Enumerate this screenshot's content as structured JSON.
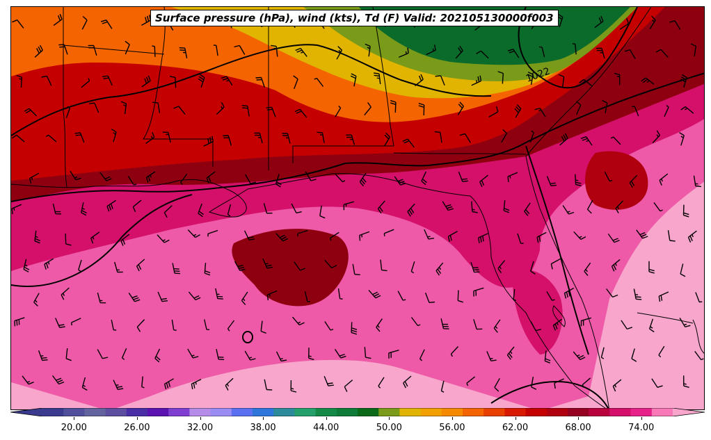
{
  "title": "Surface pressure (hPa), wind (kts), Td (F) Valid: 202105130000f003",
  "colorbar": {
    "min": 17,
    "max": 77,
    "step": 2,
    "colors": [
      "#3a3a8f",
      "#4f4f9c",
      "#63639f",
      "#5d4ea0",
      "#4a2ea6",
      "#5a12b0",
      "#7e3fd0",
      "#b58ce8",
      "#9a8cf2",
      "#5b70f0",
      "#2f76db",
      "#2c8a9a",
      "#26a06a",
      "#158a48",
      "#0e7c38",
      "#0a6a1a",
      "#7a9a1a",
      "#e0b400",
      "#f2a000",
      "#f58a00",
      "#f46400",
      "#e84000",
      "#d81a00",
      "#c40000",
      "#b00010",
      "#960020",
      "#b8003c",
      "#d4106a",
      "#e8208a",
      "#f878b8"
    ],
    "low_extend_color": "#3a3a8f",
    "high_extend_color": "#f8a6cc",
    "tick_values": [
      20,
      26,
      32,
      38,
      44,
      50,
      56,
      62,
      68,
      74
    ],
    "tick_labels": [
      "20.00",
      "26.00",
      "32.00",
      "38.00",
      "44.00",
      "50.00",
      "56.00",
      "62.00",
      "68.00",
      "74.00"
    ]
  },
  "isobars": [
    {
      "label": "1022"
    }
  ],
  "colors": {
    "td_low_green": "#0b6b2a",
    "td_olive": "#7a9a1a",
    "td_yellow": "#e0b400",
    "td_orange": "#f46400",
    "td_red": "#c40000",
    "td_darkred": "#8e0010",
    "td_magenta": "#d4106a",
    "td_pink": "#ee5aa8",
    "td_lightpink": "#f8a6cc"
  }
}
